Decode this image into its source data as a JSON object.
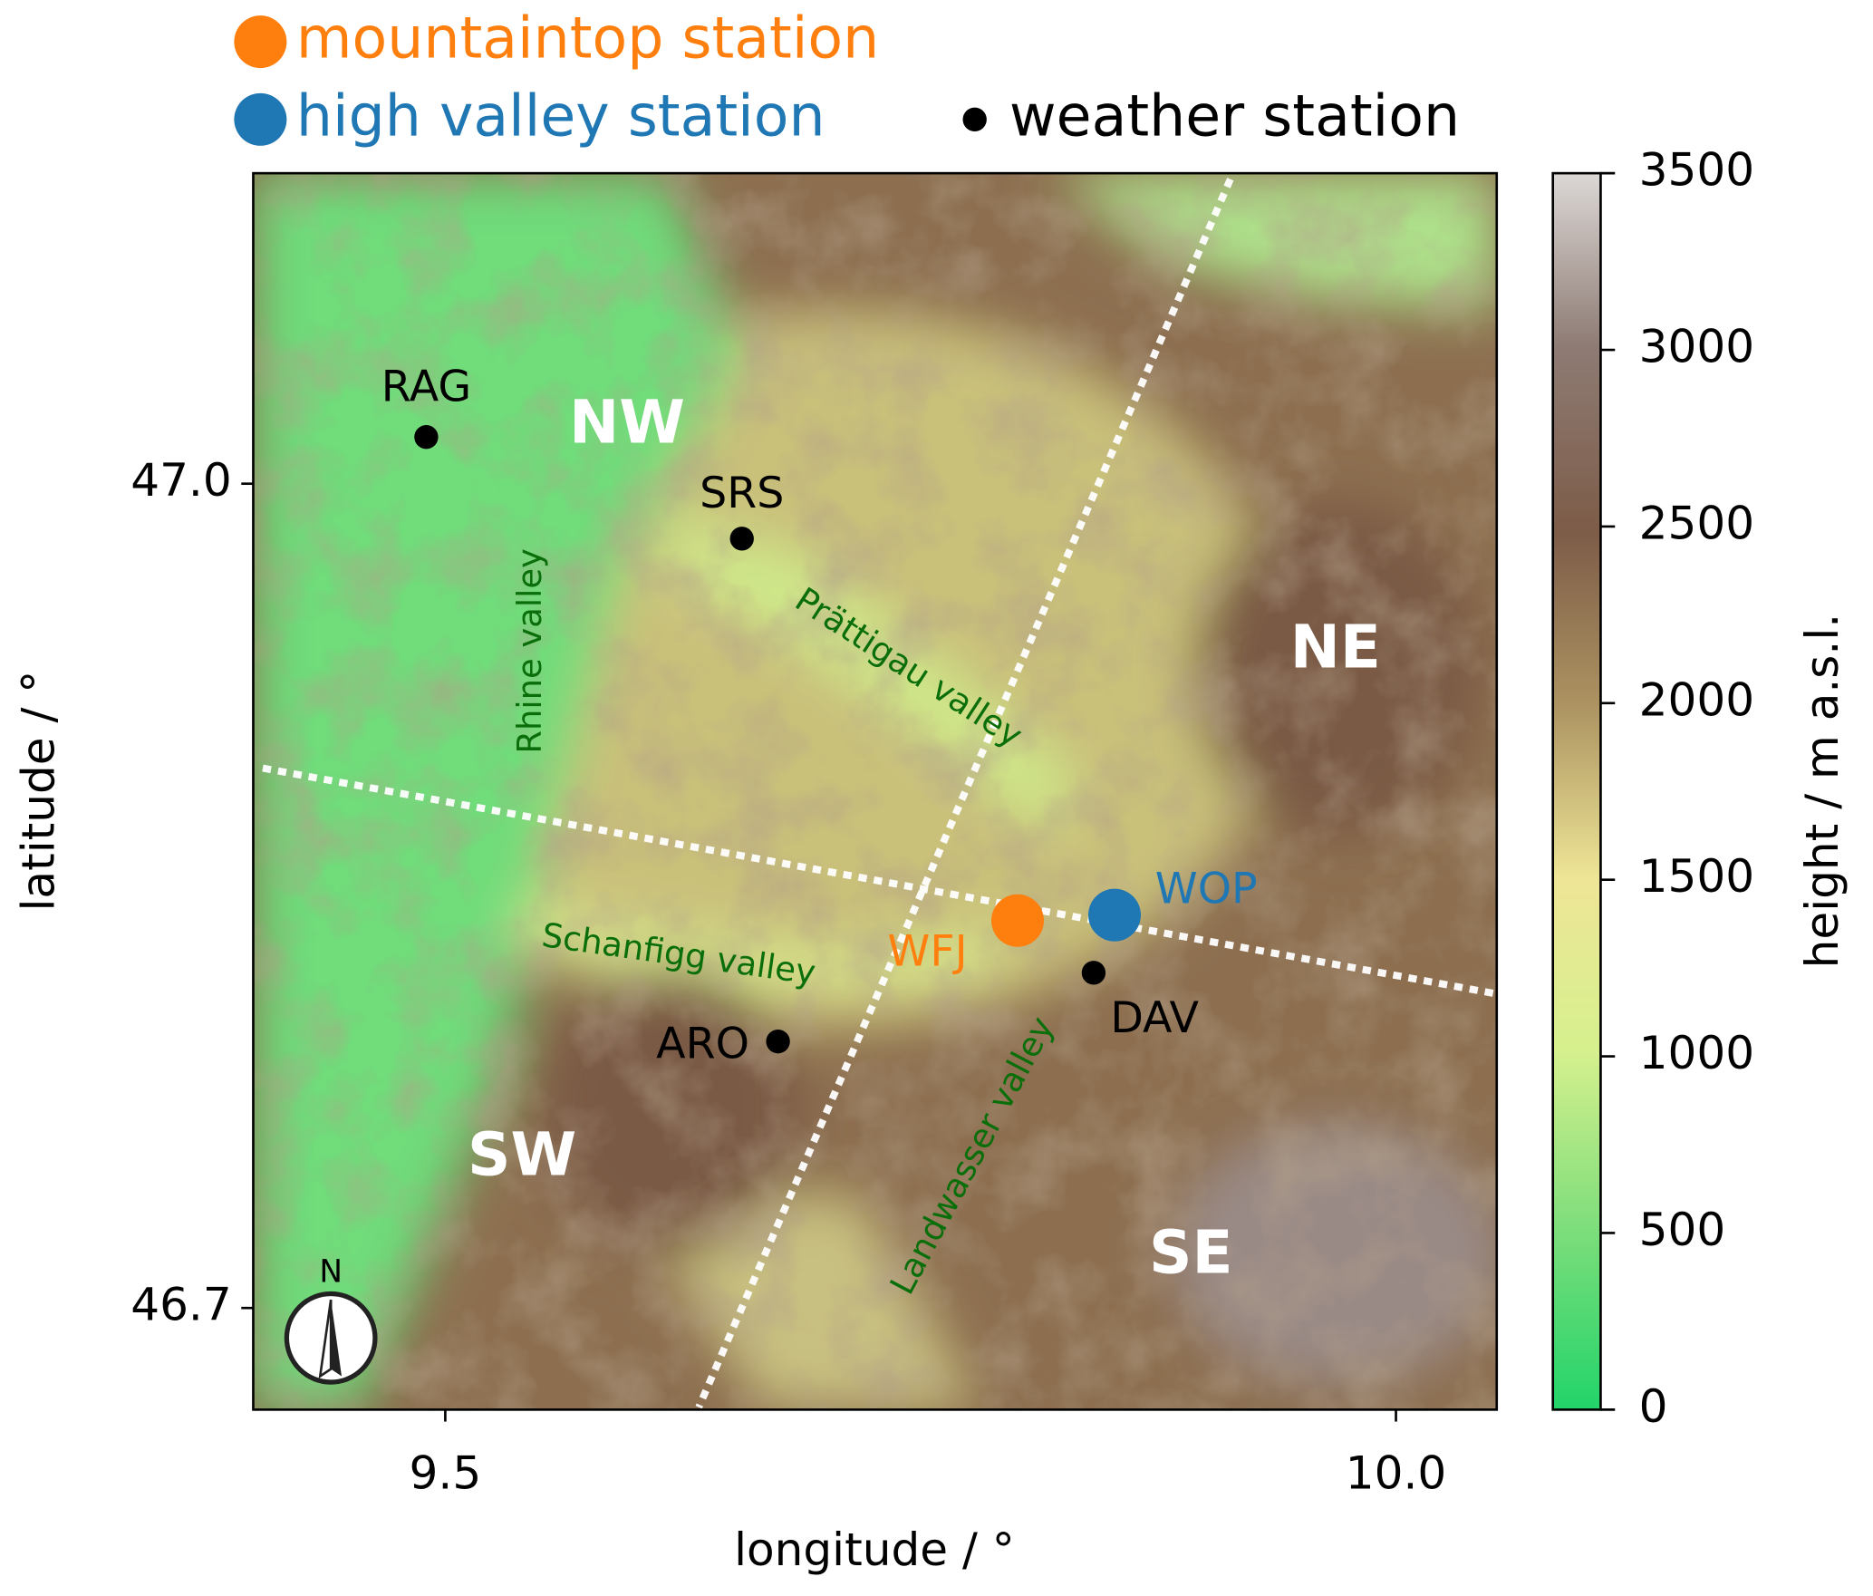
{
  "legend": [
    {
      "label": "mountaintop station",
      "color": "#ff7f0e"
    },
    {
      "label": "high valley station",
      "color": "#1f77b4"
    },
    {
      "label": "weather station",
      "color": "#000000"
    }
  ],
  "map": {
    "xlabel": "longitude / °",
    "ylabel": "latitude / °",
    "xlim": [
      9.399,
      10.053
    ],
    "ylim": [
      46.663,
      47.113
    ],
    "xticks": [
      9.5,
      {
        "value": 10.0,
        "label": "10.0"
      }
    ],
    "yticks": [
      {
        "value": 47.0,
        "label": "47.0"
      },
      46.7
    ],
    "stations": [
      {
        "name": "RAG",
        "lon": 9.49,
        "lat": 47.017,
        "kind": 2
      },
      {
        "name": "SRS",
        "lon": 9.656,
        "lat": 46.98,
        "kind": 2
      },
      {
        "name": "WFJ",
        "lon": 9.801,
        "lat": 46.841,
        "kind": 0
      },
      {
        "name": "WOP",
        "lon": 9.852,
        "lat": 46.843,
        "kind": 1
      },
      {
        "name": "DAV",
        "lon": 9.841,
        "lat": 46.822,
        "kind": 2
      },
      {
        "name": "ARO",
        "lon": 9.675,
        "lat": 46.797,
        "kind": 2
      }
    ],
    "regions": [
      "NW",
      "NE",
      "SW",
      "SE"
    ],
    "valleys": [
      "Rhine valley",
      "Prättigau valley",
      "Schanfigg valley",
      "Landwasser valley"
    ],
    "north": "N"
  },
  "colorbar": {
    "label": "height / m a.s.l.",
    "lim": [
      0,
      3500
    ],
    "ticks": [
      0,
      500,
      1000,
      1500,
      2000,
      2500,
      3000,
      3500
    ]
  }
}
